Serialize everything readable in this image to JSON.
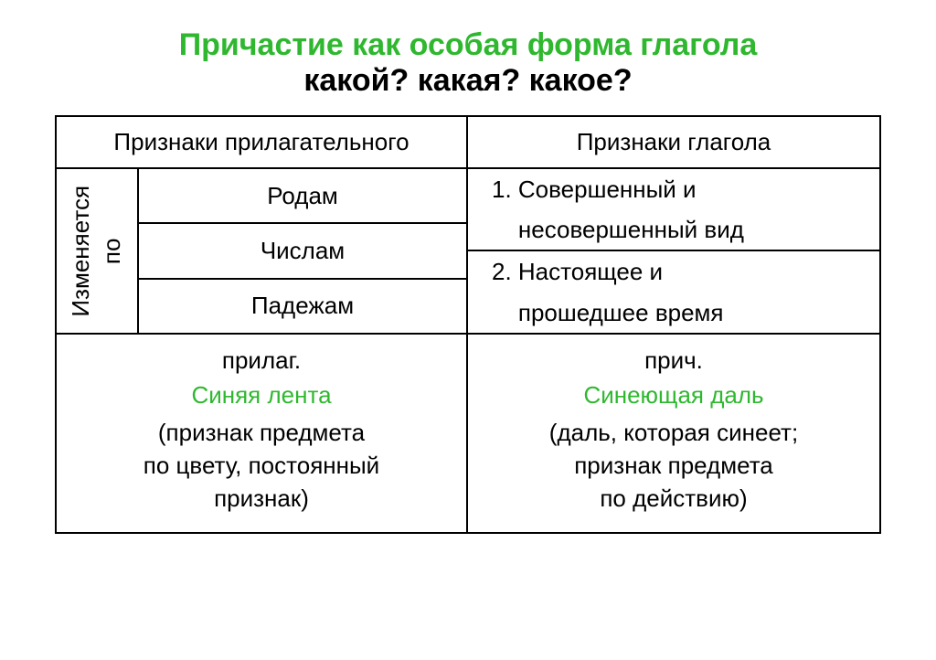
{
  "colors": {
    "green": "#2fb82f",
    "black": "#000000",
    "border": "#000000",
    "background": "#ffffff"
  },
  "fonts": {
    "title_size": "34px",
    "head_size": "26px",
    "body_size": "26px",
    "vert_size": "26px"
  },
  "title": {
    "line1": "Причастие как особая форма глагола",
    "line2": "какой? какая? какое?"
  },
  "headers": {
    "left": "Признаки прилагательного",
    "right": "Признаки глагола"
  },
  "adj": {
    "vertical": "Изменяется\nпо",
    "items": [
      "Родам",
      "Числам",
      "Падежам"
    ]
  },
  "verb": {
    "items": [
      "1. Совершенный и\n    несовершенный вид",
      "2. Настоящее и\n    прошедшее время"
    ]
  },
  "examples": {
    "left": {
      "category": "прилаг.",
      "phrase": "Синяя лента",
      "note": "(признак предмета\nпо цвету, постоянный\nпризнак)"
    },
    "right": {
      "category": "прич.",
      "phrase": "Синеющая даль",
      "note": "(даль, которая синеет;\nпризнак предмета\nпо действию)"
    }
  }
}
